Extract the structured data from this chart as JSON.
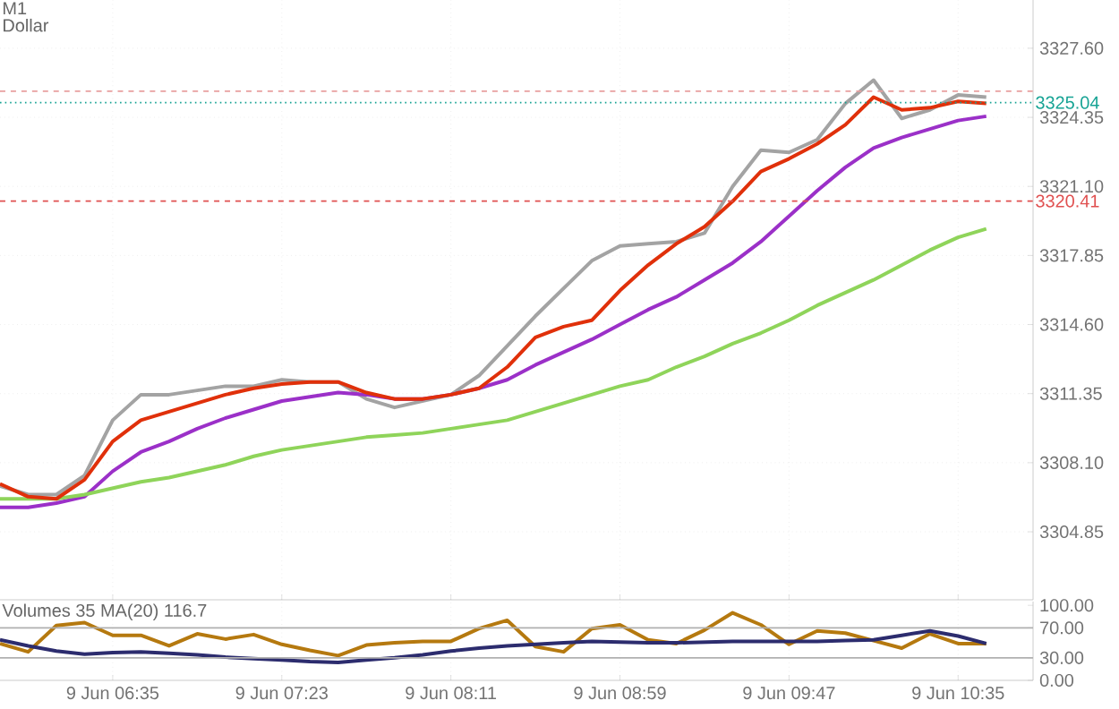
{
  "chart_data": [
    {
      "type": "line",
      "title": "M1",
      "subtitle": "Dollar",
      "categories": [
        null,
        null,
        null,
        null,
        null,
        null,
        null,
        null,
        null,
        null,
        null,
        null,
        null,
        null,
        null,
        null,
        null,
        null,
        null,
        null,
        null,
        null,
        null,
        null,
        null,
        null,
        null,
        null,
        null,
        null,
        null,
        null,
        null,
        null,
        null,
        null
      ],
      "series": [
        {
          "color": "#a3a3a3",
          "values": [
            3307.0,
            3306.6,
            3306.6,
            3307.5,
            3310.1,
            3311.3,
            3311.3,
            3311.5,
            3311.7,
            3311.7,
            3312.0,
            3311.9,
            3311.9,
            3311.1,
            3310.7,
            3311.0,
            3311.3,
            3312.2,
            3313.6,
            3315.0,
            3316.3,
            3317.6,
            3318.3,
            3318.4,
            3318.5,
            3318.9,
            3321.1,
            3322.8,
            3322.7,
            3323.3,
            3325.0,
            3326.1,
            3324.3,
            3324.7,
            3325.4,
            3325.3
          ]
        },
        {
          "color": "#9b30c8",
          "values": [
            3306.0,
            3306.0,
            3306.2,
            3306.5,
            3307.7,
            3308.6,
            3309.1,
            3309.7,
            3310.2,
            3310.6,
            3311.0,
            3311.2,
            3311.4,
            3311.3,
            3311.1,
            3311.1,
            3311.3,
            3311.6,
            3312.0,
            3312.7,
            3313.3,
            3313.9,
            3314.6,
            3315.3,
            3315.9,
            3316.7,
            3317.5,
            3318.5,
            3319.7,
            3320.9,
            3322.0,
            3322.9,
            3323.4,
            3323.8,
            3324.2,
            3324.4
          ]
        },
        {
          "color": "#8fd45a",
          "values": [
            3306.4,
            3306.4,
            3306.4,
            3306.6,
            3306.9,
            3307.2,
            3307.4,
            3307.7,
            3308.0,
            3308.4,
            3308.7,
            3308.9,
            3309.1,
            3309.3,
            3309.4,
            3309.5,
            3309.7,
            3309.9,
            3310.1,
            3310.5,
            3310.9,
            3311.3,
            3311.7,
            3312.0,
            3312.6,
            3313.1,
            3313.7,
            3314.2,
            3314.8,
            3315.5,
            3316.1,
            3316.7,
            3317.4,
            3318.1,
            3318.7,
            3319.1
          ]
        },
        {
          "color": "#e0300a",
          "values": [
            3307.1,
            3306.5,
            3306.4,
            3307.3,
            3309.1,
            3310.1,
            3310.5,
            3310.9,
            3311.3,
            3311.6,
            3311.8,
            3311.9,
            3311.9,
            3311.4,
            3311.1,
            3311.1,
            3311.3,
            3311.6,
            3312.6,
            3314.0,
            3314.5,
            3314.8,
            3316.2,
            3317.4,
            3318.4,
            3319.2,
            3320.4,
            3321.8,
            3322.4,
            3323.1,
            3324.0,
            3325.3,
            3324.7,
            3324.8,
            3325.1,
            3325.0
          ]
        }
      ],
      "ylim": [
        3301.65,
        3329.87
      ],
      "yticks": [
        {
          "value": 3304.85,
          "label": "3304.85"
        },
        {
          "value": 3308.1,
          "label": "3308.10"
        },
        {
          "value": 3311.35,
          "label": "3311.35"
        },
        {
          "value": 3314.6,
          "label": "3314.60"
        },
        {
          "value": 3317.85,
          "label": "3317.85"
        },
        {
          "value": 3321.1,
          "label": "3321.10"
        },
        {
          "value": 3324.35,
          "label": "3324.35"
        },
        {
          "value": 3327.6,
          "label": "3327.60"
        }
      ],
      "grid": true,
      "tick_labels": "y",
      "ref_lines": [
        {
          "axis": "y",
          "value": 3325.58,
          "color": "#e8a0a0",
          "line_style": "dashed"
        },
        {
          "axis": "y",
          "value": 3325.04,
          "label": "3325.04",
          "color": "#16a394",
          "line_style": "dotted"
        },
        {
          "axis": "y",
          "value": 3320.41,
          "label": "3320.41",
          "color": "#e05050",
          "line_style": "dashed"
        }
      ]
    },
    {
      "type": "line",
      "title": "Volumes 35 MA(20) 116.7",
      "categories": [
        null,
        null,
        null,
        null,
        "9 Jun 06:35",
        null,
        null,
        null,
        null,
        null,
        "9 Jun 07:23",
        null,
        null,
        null,
        null,
        null,
        "9 Jun 08:11",
        null,
        null,
        null,
        null,
        null,
        "9 Jun 08:59",
        null,
        null,
        null,
        null,
        null,
        "9 Jun 09:47",
        null,
        null,
        null,
        null,
        null,
        "9 Jun 10:35",
        null
      ],
      "series": [
        {
          "color": "#b5790f",
          "values": [
            49,
            38,
            73,
            77,
            60,
            60,
            46,
            62,
            55,
            61,
            48,
            40,
            33,
            47,
            50,
            52,
            52,
            69,
            80,
            45,
            38,
            69,
            74,
            54,
            49,
            67,
            90,
            74,
            48,
            66,
            63,
            53,
            43,
            62,
            49,
            49
          ]
        },
        {
          "color": "#2c2c6e",
          "values": [
            54,
            46,
            39,
            35,
            37,
            38,
            36,
            34,
            31,
            29,
            27,
            25,
            24,
            27,
            30,
            34,
            39,
            43,
            46,
            48,
            50,
            52,
            51,
            50,
            50,
            51,
            52,
            52,
            52,
            52,
            53,
            54,
            60,
            66,
            59,
            49
          ]
        }
      ],
      "ylim": [
        0,
        105
      ],
      "yticks": [
        {
          "value": 0,
          "label": "0.00"
        },
        {
          "value": 30,
          "label": "30.00"
        },
        {
          "value": 70,
          "label": "70.00"
        },
        {
          "value": 100,
          "label": "100.00"
        }
      ],
      "grid": "x",
      "ref_lines": [
        {
          "axis": "y",
          "value": 30,
          "color": "#b0b0b0",
          "line_style": "solid"
        },
        {
          "axis": "y",
          "value": 70,
          "color": "#b0b0b0",
          "line_style": "solid"
        }
      ]
    }
  ]
}
